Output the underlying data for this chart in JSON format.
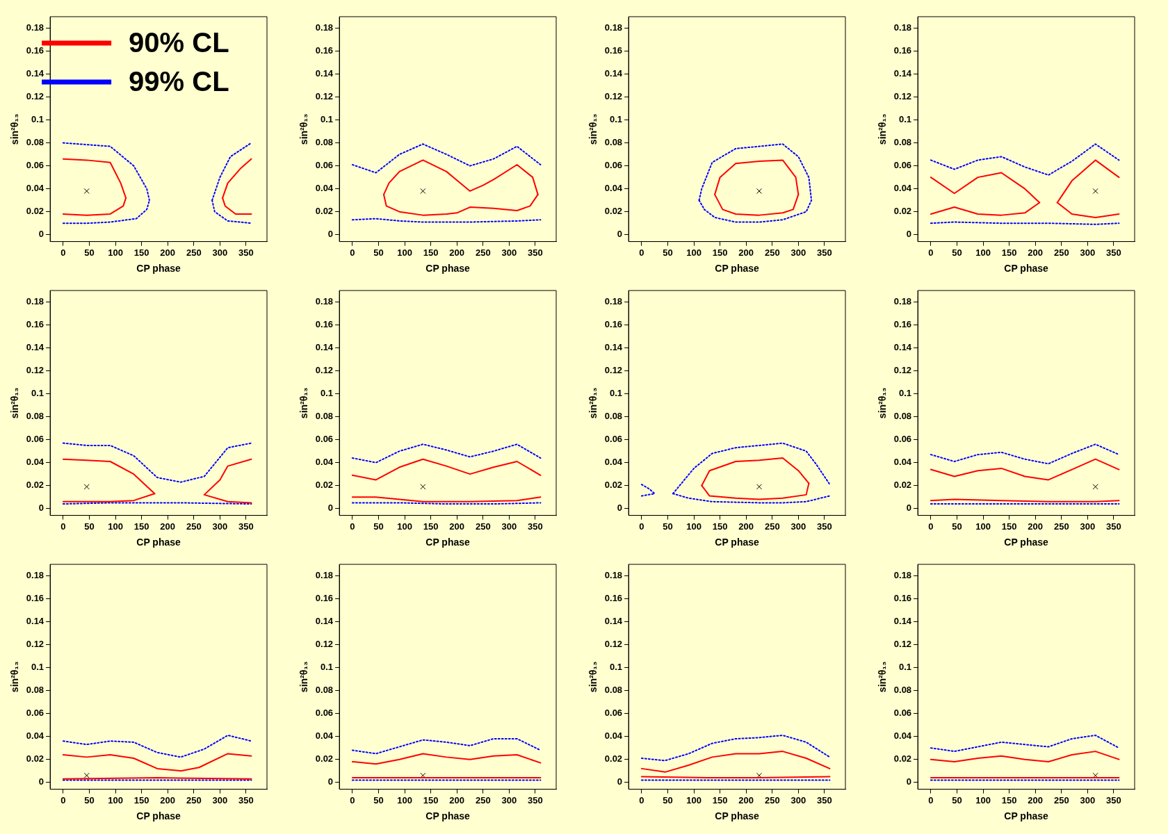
{
  "chart_data": [
    {
      "type": "line",
      "xlabel": "CP phase",
      "ylabel": "sin²θ₁₃",
      "xlim": [
        -25,
        390
      ],
      "xticks": [
        0,
        50,
        100,
        150,
        200,
        250,
        300,
        350
      ],
      "ylim": [
        -0.006,
        0.19
      ],
      "yticks": [
        0,
        0.02,
        0.04,
        0.06,
        0.08,
        0.1,
        0.12,
        0.14,
        0.16,
        0.18
      ],
      "grid": false,
      "legend": "top left",
      "series": [
        {
          "name": "90% CL",
          "color": "#ff0000",
          "line_style": "solid",
          "x": [
            0,
            45,
            90,
            110,
            120
          ],
          "values": [
            0.066,
            0.065,
            0.063,
            0.045,
            0.032
          ]
        },
        {
          "color": "#ff0000",
          "line_style": "solid",
          "x": [
            0,
            45,
            90,
            115,
            120
          ],
          "values": [
            0.018,
            0.017,
            0.018,
            0.025,
            0.032
          ]
        },
        {
          "color": "#ff0000",
          "line_style": "solid",
          "x": [
            305,
            315,
            340,
            360
          ],
          "values": [
            0.032,
            0.045,
            0.058,
            0.066
          ]
        },
        {
          "color": "#ff0000",
          "line_style": "solid",
          "x": [
            305,
            310,
            330,
            360
          ],
          "values": [
            0.032,
            0.025,
            0.018,
            0.018
          ]
        },
        {
          "name": "99% CL",
          "color": "#0000ff",
          "line_style": "dotted",
          "x": [
            0,
            90,
            135,
            160,
            165
          ],
          "values": [
            0.08,
            0.077,
            0.06,
            0.04,
            0.03
          ]
        },
        {
          "color": "#0000ff",
          "line_style": "dotted",
          "x": [
            0,
            45,
            90,
            140,
            160,
            165
          ],
          "values": [
            0.01,
            0.01,
            0.011,
            0.014,
            0.022,
            0.03
          ]
        },
        {
          "color": "#0000ff",
          "line_style": "dotted",
          "x": [
            285,
            300,
            320,
            360
          ],
          "values": [
            0.03,
            0.05,
            0.068,
            0.08
          ]
        },
        {
          "color": "#0000ff",
          "line_style": "dotted",
          "x": [
            285,
            290,
            315,
            360
          ],
          "values": [
            0.03,
            0.02,
            0.012,
            0.01
          ]
        },
        {
          "type": "scatter",
          "marker": "cross",
          "color": "#000000",
          "x": [
            45
          ],
          "values": [
            0.038
          ]
        }
      ]
    },
    {
      "type": "line",
      "xlabel": "CP phase",
      "ylabel": "sin²θ₁₃",
      "xlim": [
        -25,
        390
      ],
      "xticks": [
        0,
        50,
        100,
        150,
        200,
        250,
        300,
        350
      ],
      "ylim": [
        -0.006,
        0.19
      ],
      "yticks": [
        0,
        0.02,
        0.04,
        0.06,
        0.08,
        0.1,
        0.12,
        0.14,
        0.16,
        0.18
      ],
      "grid": false,
      "series": [
        {
          "color": "#ff0000",
          "line_style": "solid",
          "x": [
            60,
            70,
            90,
            135,
            180,
            225,
            250,
            270,
            315,
            345,
            355
          ],
          "values": [
            0.035,
            0.045,
            0.055,
            0.065,
            0.055,
            0.038,
            0.043,
            0.048,
            0.061,
            0.05,
            0.035
          ]
        },
        {
          "color": "#ff0000",
          "line_style": "solid",
          "x": [
            60,
            65,
            90,
            135,
            180,
            200,
            225,
            270,
            315,
            340,
            355
          ],
          "values": [
            0.035,
            0.025,
            0.02,
            0.017,
            0.018,
            0.019,
            0.024,
            0.023,
            0.021,
            0.025,
            0.035
          ]
        },
        {
          "color": "#0000ff",
          "line_style": "dotted",
          "x": [
            0,
            45,
            90,
            135,
            180,
            225,
            270,
            315,
            360
          ],
          "values": [
            0.061,
            0.054,
            0.07,
            0.079,
            0.07,
            0.06,
            0.066,
            0.077,
            0.061
          ]
        },
        {
          "color": "#0000ff",
          "line_style": "dotted",
          "x": [
            0,
            45,
            90,
            135,
            225,
            315,
            360
          ],
          "values": [
            0.013,
            0.014,
            0.012,
            0.011,
            0.011,
            0.012,
            0.013
          ]
        },
        {
          "type": "scatter",
          "marker": "cross",
          "color": "#000000",
          "x": [
            135
          ],
          "values": [
            0.038
          ]
        }
      ]
    },
    {
      "type": "line",
      "xlabel": "CP phase",
      "ylabel": "sin²θ₁₃",
      "xlim": [
        -25,
        390
      ],
      "xticks": [
        0,
        50,
        100,
        150,
        200,
        250,
        300,
        350
      ],
      "ylim": [
        -0.006,
        0.19
      ],
      "yticks": [
        0,
        0.02,
        0.04,
        0.06,
        0.08,
        0.1,
        0.12,
        0.14,
        0.16,
        0.18
      ],
      "grid": false,
      "series": [
        {
          "color": "#ff0000",
          "line_style": "solid",
          "x": [
            140,
            150,
            180,
            225,
            270,
            295,
            300
          ],
          "values": [
            0.035,
            0.05,
            0.062,
            0.064,
            0.065,
            0.05,
            0.035
          ]
        },
        {
          "color": "#ff0000",
          "line_style": "solid",
          "x": [
            140,
            155,
            180,
            225,
            270,
            290,
            300
          ],
          "values": [
            0.035,
            0.022,
            0.018,
            0.017,
            0.019,
            0.022,
            0.035
          ]
        },
        {
          "color": "#0000ff",
          "line_style": "dotted",
          "x": [
            110,
            115,
            135,
            180,
            225,
            270,
            300,
            320,
            325
          ],
          "values": [
            0.03,
            0.04,
            0.063,
            0.075,
            0.077,
            0.079,
            0.068,
            0.05,
            0.03
          ]
        },
        {
          "color": "#0000ff",
          "line_style": "dotted",
          "x": [
            110,
            120,
            140,
            180,
            225,
            270,
            315,
            325
          ],
          "values": [
            0.03,
            0.022,
            0.015,
            0.011,
            0.011,
            0.013,
            0.02,
            0.03
          ]
        },
        {
          "type": "scatter",
          "marker": "cross",
          "color": "#000000",
          "x": [
            225
          ],
          "values": [
            0.038
          ]
        }
      ]
    },
    {
      "type": "line",
      "xlabel": "CP phase",
      "ylabel": "sin²θ₁₃",
      "xlim": [
        -25,
        390
      ],
      "xticks": [
        0,
        50,
        100,
        150,
        200,
        250,
        300,
        350
      ],
      "ylim": [
        -0.006,
        0.19
      ],
      "yticks": [
        0,
        0.02,
        0.04,
        0.06,
        0.08,
        0.1,
        0.12,
        0.14,
        0.16,
        0.18
      ],
      "grid": false,
      "series": [
        {
          "color": "#ff0000",
          "line_style": "solid",
          "x": [
            0,
            45,
            90,
            135,
            180,
            208
          ],
          "values": [
            0.05,
            0.036,
            0.05,
            0.054,
            0.04,
            0.028
          ]
        },
        {
          "color": "#ff0000",
          "line_style": "solid",
          "x": [
            0,
            45,
            90,
            135,
            180,
            208
          ],
          "values": [
            0.018,
            0.024,
            0.018,
            0.017,
            0.019,
            0.028
          ]
        },
        {
          "color": "#ff0000",
          "line_style": "solid",
          "x": [
            242,
            270,
            315,
            360
          ],
          "values": [
            0.028,
            0.047,
            0.065,
            0.05
          ]
        },
        {
          "color": "#ff0000",
          "line_style": "solid",
          "x": [
            242,
            270,
            315,
            360
          ],
          "values": [
            0.028,
            0.018,
            0.015,
            0.018
          ]
        },
        {
          "color": "#0000ff",
          "line_style": "dotted",
          "x": [
            0,
            45,
            90,
            135,
            180,
            225,
            270,
            315,
            360
          ],
          "values": [
            0.065,
            0.057,
            0.065,
            0.068,
            0.059,
            0.052,
            0.064,
            0.079,
            0.065
          ]
        },
        {
          "color": "#0000ff",
          "line_style": "dotted",
          "x": [
            0,
            45,
            135,
            225,
            315,
            360
          ],
          "values": [
            0.01,
            0.011,
            0.01,
            0.01,
            0.009,
            0.01
          ]
        },
        {
          "type": "scatter",
          "marker": "cross",
          "color": "#000000",
          "x": [
            315
          ],
          "values": [
            0.038
          ]
        }
      ]
    },
    {
      "type": "line",
      "xlabel": "CP phase",
      "ylabel": "sin²θ₁₃",
      "xlim": [
        -25,
        390
      ],
      "xticks": [
        0,
        50,
        100,
        150,
        200,
        250,
        300,
        350
      ],
      "ylim": [
        -0.006,
        0.19
      ],
      "yticks": [
        0,
        0.02,
        0.04,
        0.06,
        0.08,
        0.1,
        0.12,
        0.14,
        0.16,
        0.18
      ],
      "grid": false,
      "series": [
        {
          "color": "#ff0000",
          "line_style": "solid",
          "x": [
            0,
            45,
            90,
            135,
            175
          ],
          "values": [
            0.043,
            0.042,
            0.041,
            0.03,
            0.013
          ]
        },
        {
          "color": "#ff0000",
          "line_style": "solid",
          "x": [
            0,
            45,
            90,
            135,
            175
          ],
          "values": [
            0.006,
            0.006,
            0.006,
            0.007,
            0.013
          ]
        },
        {
          "color": "#ff0000",
          "line_style": "solid",
          "x": [
            270,
            300,
            315,
            360
          ],
          "values": [
            0.012,
            0.025,
            0.037,
            0.043
          ]
        },
        {
          "color": "#ff0000",
          "line_style": "solid",
          "x": [
            270,
            315,
            360
          ],
          "values": [
            0.012,
            0.006,
            0.005
          ]
        },
        {
          "color": "#0000ff",
          "line_style": "dotted",
          "x": [
            0,
            45,
            90,
            135,
            180,
            225,
            270,
            315,
            360
          ],
          "values": [
            0.057,
            0.055,
            0.055,
            0.046,
            0.027,
            0.023,
            0.028,
            0.053,
            0.057
          ]
        },
        {
          "color": "#0000ff",
          "line_style": "dotted",
          "x": [
            0,
            90,
            225,
            360
          ],
          "values": [
            0.004,
            0.005,
            0.005,
            0.004
          ]
        },
        {
          "type": "scatter",
          "marker": "cross",
          "color": "#000000",
          "x": [
            45
          ],
          "values": [
            0.019
          ]
        }
      ]
    },
    {
      "type": "line",
      "xlabel": "CP phase",
      "ylabel": "sin²θ₁₃",
      "xlim": [
        -25,
        390
      ],
      "xticks": [
        0,
        50,
        100,
        150,
        200,
        250,
        300,
        350
      ],
      "ylim": [
        -0.006,
        0.19
      ],
      "yticks": [
        0,
        0.02,
        0.04,
        0.06,
        0.08,
        0.1,
        0.12,
        0.14,
        0.16,
        0.18
      ],
      "grid": false,
      "series": [
        {
          "color": "#ff0000",
          "line_style": "solid",
          "x": [
            0,
            45,
            90,
            135,
            180,
            225,
            270,
            315,
            360
          ],
          "values": [
            0.029,
            0.025,
            0.036,
            0.043,
            0.037,
            0.03,
            0.036,
            0.041,
            0.029
          ]
        },
        {
          "color": "#ff0000",
          "line_style": "solid",
          "x": [
            0,
            45,
            90,
            135,
            225,
            315,
            360
          ],
          "values": [
            0.01,
            0.01,
            0.008,
            0.006,
            0.006,
            0.007,
            0.01
          ]
        },
        {
          "color": "#0000ff",
          "line_style": "dotted",
          "x": [
            0,
            45,
            90,
            135,
            180,
            225,
            270,
            315,
            360
          ],
          "values": [
            0.044,
            0.04,
            0.05,
            0.056,
            0.051,
            0.045,
            0.05,
            0.056,
            0.044
          ]
        },
        {
          "color": "#0000ff",
          "line_style": "dotted",
          "x": [
            0,
            90,
            180,
            270,
            360
          ],
          "values": [
            0.005,
            0.005,
            0.004,
            0.004,
            0.005
          ]
        },
        {
          "type": "scatter",
          "marker": "cross",
          "color": "#000000",
          "x": [
            135
          ],
          "values": [
            0.019
          ]
        }
      ]
    },
    {
      "type": "line",
      "xlabel": "CP phase",
      "ylabel": "sin²θ₁₃",
      "xlim": [
        -25,
        390
      ],
      "xticks": [
        0,
        50,
        100,
        150,
        200,
        250,
        300,
        350
      ],
      "ylim": [
        -0.006,
        0.19
      ],
      "yticks": [
        0,
        0.02,
        0.04,
        0.06,
        0.08,
        0.1,
        0.12,
        0.14,
        0.16,
        0.18
      ],
      "grid": false,
      "series": [
        {
          "color": "#ff0000",
          "line_style": "solid",
          "x": [
            115,
            130,
            180,
            225,
            270,
            300,
            320
          ],
          "values": [
            0.02,
            0.033,
            0.041,
            0.042,
            0.044,
            0.033,
            0.022
          ]
        },
        {
          "color": "#ff0000",
          "line_style": "solid",
          "x": [
            115,
            130,
            180,
            225,
            270,
            315,
            320
          ],
          "values": [
            0.02,
            0.011,
            0.009,
            0.008,
            0.009,
            0.012,
            0.022
          ]
        },
        {
          "color": "#0000ff",
          "line_style": "dotted",
          "x": [
            60,
            100,
            135,
            180,
            225,
            270,
            315,
            335,
            360
          ],
          "values": [
            0.013,
            0.035,
            0.048,
            0.053,
            0.055,
            0.057,
            0.05,
            0.038,
            0.021
          ]
        },
        {
          "color": "#0000ff",
          "line_style": "dotted",
          "x": [
            60,
            90,
            135,
            225,
            270,
            315,
            360
          ],
          "values": [
            0.013,
            0.009,
            0.006,
            0.005,
            0.005,
            0.006,
            0.011
          ]
        },
        {
          "color": "#0000ff",
          "line_style": "dotted",
          "x": [
            0,
            25
          ],
          "values": [
            0.011,
            0.013
          ]
        },
        {
          "color": "#0000ff",
          "line_style": "dotted",
          "x": [
            0,
            15,
            25
          ],
          "values": [
            0.021,
            0.017,
            0.013
          ]
        },
        {
          "type": "scatter",
          "marker": "cross",
          "color": "#000000",
          "x": [
            225
          ],
          "values": [
            0.019
          ]
        }
      ]
    },
    {
      "type": "line",
      "xlabel": "CP phase",
      "ylabel": "sin²θ₁₃",
      "xlim": [
        -25,
        390
      ],
      "xticks": [
        0,
        50,
        100,
        150,
        200,
        250,
        300,
        350
      ],
      "ylim": [
        -0.006,
        0.19
      ],
      "yticks": [
        0,
        0.02,
        0.04,
        0.06,
        0.08,
        0.1,
        0.12,
        0.14,
        0.16,
        0.18
      ],
      "grid": false,
      "series": [
        {
          "color": "#ff0000",
          "line_style": "solid",
          "x": [
            0,
            45,
            90,
            135,
            180,
            225,
            270,
            315,
            360
          ],
          "values": [
            0.034,
            0.028,
            0.033,
            0.035,
            0.028,
            0.025,
            0.034,
            0.043,
            0.034
          ]
        },
        {
          "color": "#ff0000",
          "line_style": "solid",
          "x": [
            0,
            45,
            135,
            225,
            315,
            360
          ],
          "values": [
            0.007,
            0.008,
            0.007,
            0.006,
            0.006,
            0.007
          ]
        },
        {
          "color": "#0000ff",
          "line_style": "dotted",
          "x": [
            0,
            45,
            90,
            135,
            180,
            225,
            270,
            315,
            360
          ],
          "values": [
            0.047,
            0.041,
            0.047,
            0.049,
            0.043,
            0.039,
            0.048,
            0.056,
            0.047
          ]
        },
        {
          "color": "#0000ff",
          "line_style": "dotted",
          "x": [
            0,
            180,
            360
          ],
          "values": [
            0.004,
            0.004,
            0.004
          ]
        },
        {
          "type": "scatter",
          "marker": "cross",
          "color": "#000000",
          "x": [
            315
          ],
          "values": [
            0.019
          ]
        }
      ]
    },
    {
      "type": "line",
      "xlabel": "CP phase",
      "ylabel": "sin²θ₁₃",
      "xlim": [
        -25,
        390
      ],
      "xticks": [
        0,
        50,
        100,
        150,
        200,
        250,
        300,
        350
      ],
      "ylim": [
        -0.006,
        0.19
      ],
      "yticks": [
        0,
        0.02,
        0.04,
        0.06,
        0.08,
        0.1,
        0.12,
        0.14,
        0.16,
        0.18
      ],
      "grid": false,
      "series": [
        {
          "color": "#ff0000",
          "line_style": "solid",
          "x": [
            0,
            45,
            90,
            135,
            180,
            225,
            260,
            315,
            360
          ],
          "values": [
            0.024,
            0.022,
            0.024,
            0.021,
            0.012,
            0.01,
            0.013,
            0.025,
            0.023
          ]
        },
        {
          "color": "#ff0000",
          "line_style": "solid",
          "x": [
            0,
            180,
            360
          ],
          "values": [
            0.003,
            0.004,
            0.003
          ]
        },
        {
          "color": "#0000ff",
          "line_style": "dotted",
          "x": [
            0,
            45,
            90,
            135,
            180,
            225,
            270,
            315,
            360
          ],
          "values": [
            0.036,
            0.033,
            0.036,
            0.035,
            0.026,
            0.022,
            0.029,
            0.041,
            0.036
          ]
        },
        {
          "color": "#0000ff",
          "line_style": "dotted",
          "x": [
            0,
            360
          ],
          "values": [
            0.002,
            0.002
          ]
        },
        {
          "type": "scatter",
          "marker": "cross",
          "color": "#000000",
          "x": [
            45
          ],
          "values": [
            0.006
          ]
        }
      ]
    },
    {
      "type": "line",
      "xlabel": "CP phase",
      "ylabel": "sin²θ₁₃",
      "xlim": [
        -25,
        390
      ],
      "xticks": [
        0,
        50,
        100,
        150,
        200,
        250,
        300,
        350
      ],
      "ylim": [
        -0.006,
        0.19
      ],
      "yticks": [
        0,
        0.02,
        0.04,
        0.06,
        0.08,
        0.1,
        0.12,
        0.14,
        0.16,
        0.18
      ],
      "grid": false,
      "series": [
        {
          "color": "#ff0000",
          "line_style": "solid",
          "x": [
            0,
            45,
            90,
            135,
            180,
            225,
            270,
            315,
            360
          ],
          "values": [
            0.018,
            0.016,
            0.02,
            0.025,
            0.022,
            0.02,
            0.023,
            0.024,
            0.017
          ]
        },
        {
          "color": "#ff0000",
          "line_style": "solid",
          "x": [
            0,
            360
          ],
          "values": [
            0.004,
            0.004
          ]
        },
        {
          "color": "#0000ff",
          "line_style": "dotted",
          "x": [
            0,
            45,
            90,
            135,
            180,
            225,
            270,
            315,
            360
          ],
          "values": [
            0.028,
            0.025,
            0.031,
            0.037,
            0.035,
            0.032,
            0.038,
            0.038,
            0.028
          ]
        },
        {
          "color": "#0000ff",
          "line_style": "dotted",
          "x": [
            0,
            360
          ],
          "values": [
            0.002,
            0.002
          ]
        },
        {
          "type": "scatter",
          "marker": "cross",
          "color": "#000000",
          "x": [
            135
          ],
          "values": [
            0.006
          ]
        }
      ]
    },
    {
      "type": "line",
      "xlabel": "CP phase",
      "ylabel": "sin²θ₁₃",
      "xlim": [
        -25,
        390
      ],
      "xticks": [
        0,
        50,
        100,
        150,
        200,
        250,
        300,
        350
      ],
      "ylim": [
        -0.006,
        0.19
      ],
      "yticks": [
        0,
        0.02,
        0.04,
        0.06,
        0.08,
        0.1,
        0.12,
        0.14,
        0.16,
        0.18
      ],
      "grid": false,
      "series": [
        {
          "color": "#ff0000",
          "line_style": "solid",
          "x": [
            0,
            45,
            90,
            135,
            180,
            225,
            270,
            315,
            360
          ],
          "values": [
            0.012,
            0.009,
            0.015,
            0.022,
            0.025,
            0.025,
            0.027,
            0.021,
            0.012
          ]
        },
        {
          "color": "#ff0000",
          "line_style": "solid",
          "x": [
            0,
            135,
            225,
            360
          ],
          "values": [
            0.005,
            0.004,
            0.004,
            0.005
          ]
        },
        {
          "color": "#0000ff",
          "line_style": "dotted",
          "x": [
            0,
            45,
            90,
            135,
            180,
            225,
            270,
            315,
            360
          ],
          "values": [
            0.021,
            0.019,
            0.025,
            0.034,
            0.038,
            0.039,
            0.041,
            0.035,
            0.022
          ]
        },
        {
          "color": "#0000ff",
          "line_style": "dotted",
          "x": [
            0,
            360
          ],
          "values": [
            0.002,
            0.002
          ]
        },
        {
          "type": "scatter",
          "marker": "cross",
          "color": "#000000",
          "x": [
            225
          ],
          "values": [
            0.006
          ]
        }
      ]
    },
    {
      "type": "line",
      "xlabel": "CP phase",
      "ylabel": "sin²θ₁₃",
      "xlim": [
        -25,
        390
      ],
      "xticks": [
        0,
        50,
        100,
        150,
        200,
        250,
        300,
        350
      ],
      "ylim": [
        -0.006,
        0.19
      ],
      "yticks": [
        0,
        0.02,
        0.04,
        0.06,
        0.08,
        0.1,
        0.12,
        0.14,
        0.16,
        0.18
      ],
      "grid": false,
      "series": [
        {
          "color": "#ff0000",
          "line_style": "solid",
          "x": [
            0,
            45,
            90,
            135,
            180,
            225,
            270,
            315,
            360
          ],
          "values": [
            0.02,
            0.018,
            0.021,
            0.023,
            0.02,
            0.018,
            0.024,
            0.027,
            0.02
          ]
        },
        {
          "color": "#ff0000",
          "line_style": "solid",
          "x": [
            0,
            360
          ],
          "values": [
            0.004,
            0.004
          ]
        },
        {
          "color": "#0000ff",
          "line_style": "dotted",
          "x": [
            0,
            45,
            90,
            135,
            180,
            225,
            270,
            315,
            360
          ],
          "values": [
            0.03,
            0.027,
            0.031,
            0.035,
            0.033,
            0.031,
            0.038,
            0.041,
            0.03
          ]
        },
        {
          "color": "#0000ff",
          "line_style": "dotted",
          "x": [
            0,
            360
          ],
          "values": [
            0.002,
            0.002
          ]
        },
        {
          "type": "scatter",
          "marker": "cross",
          "color": "#000000",
          "x": [
            315
          ],
          "values": [
            0.006
          ]
        }
      ]
    }
  ]
}
